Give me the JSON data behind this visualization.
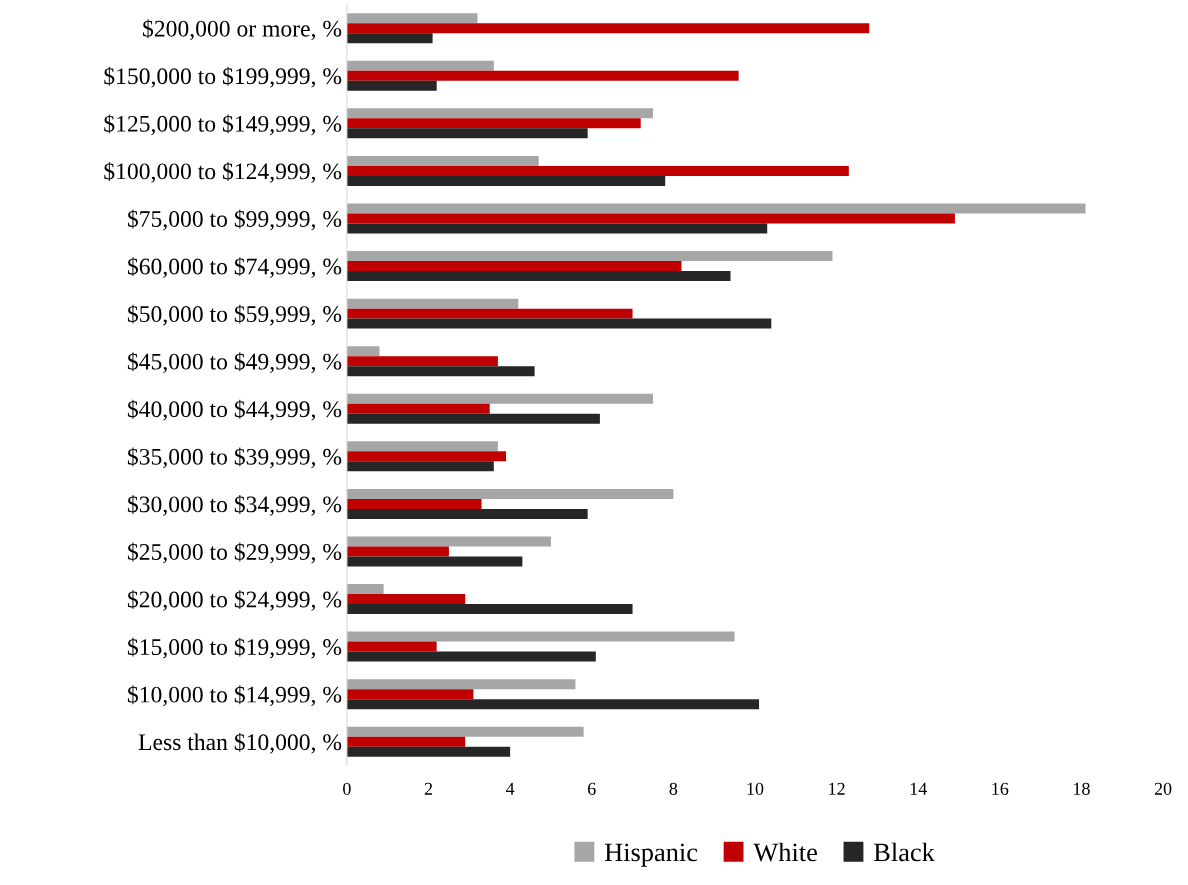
{
  "chart_data": {
    "type": "bar",
    "orientation": "horizontal",
    "categories": [
      "$200,000 or more, %",
      "$150,000 to $199,999, %",
      "$125,000 to $149,999, %",
      "$100,000 to $124,999, %",
      "$75,000 to $99,999, %",
      "$60,000 to $74,999, %",
      "$50,000 to $59,999, %",
      "$45,000 to $49,999, %",
      "$40,000 to $44,999, %",
      "$35,000 to $39,999, %",
      "$30,000 to $34,999, %",
      "$25,000 to $29,999, %",
      "$20,000 to $24,999, %",
      "$15,000 to $19,999, %",
      "$10,000 to $14,999, %",
      "Less than $10,000, %"
    ],
    "series": [
      {
        "name": "Hispanic",
        "color": "#a6a6a6",
        "values": [
          3.2,
          3.6,
          7.5,
          4.7,
          18.1,
          11.9,
          4.2,
          0.8,
          7.5,
          3.7,
          8.0,
          5.0,
          0.9,
          9.5,
          5.6,
          5.8
        ]
      },
      {
        "name": "White",
        "color": "#c00000",
        "values": [
          12.8,
          9.6,
          7.2,
          12.3,
          14.9,
          8.2,
          7.0,
          3.7,
          3.5,
          3.9,
          3.3,
          2.5,
          2.9,
          2.2,
          3.1,
          2.9
        ]
      },
      {
        "name": "Black",
        "color": "#262626",
        "values": [
          2.1,
          2.2,
          5.9,
          7.8,
          10.3,
          9.4,
          10.4,
          4.6,
          6.2,
          3.6,
          5.9,
          4.3,
          7.0,
          6.1,
          10.1,
          4.0
        ]
      }
    ],
    "xlim": [
      0,
      20
    ],
    "xticks": [
      0,
      2,
      4,
      6,
      8,
      10,
      12,
      14,
      16,
      18,
      20
    ],
    "grid": false,
    "legend": "bottom"
  }
}
